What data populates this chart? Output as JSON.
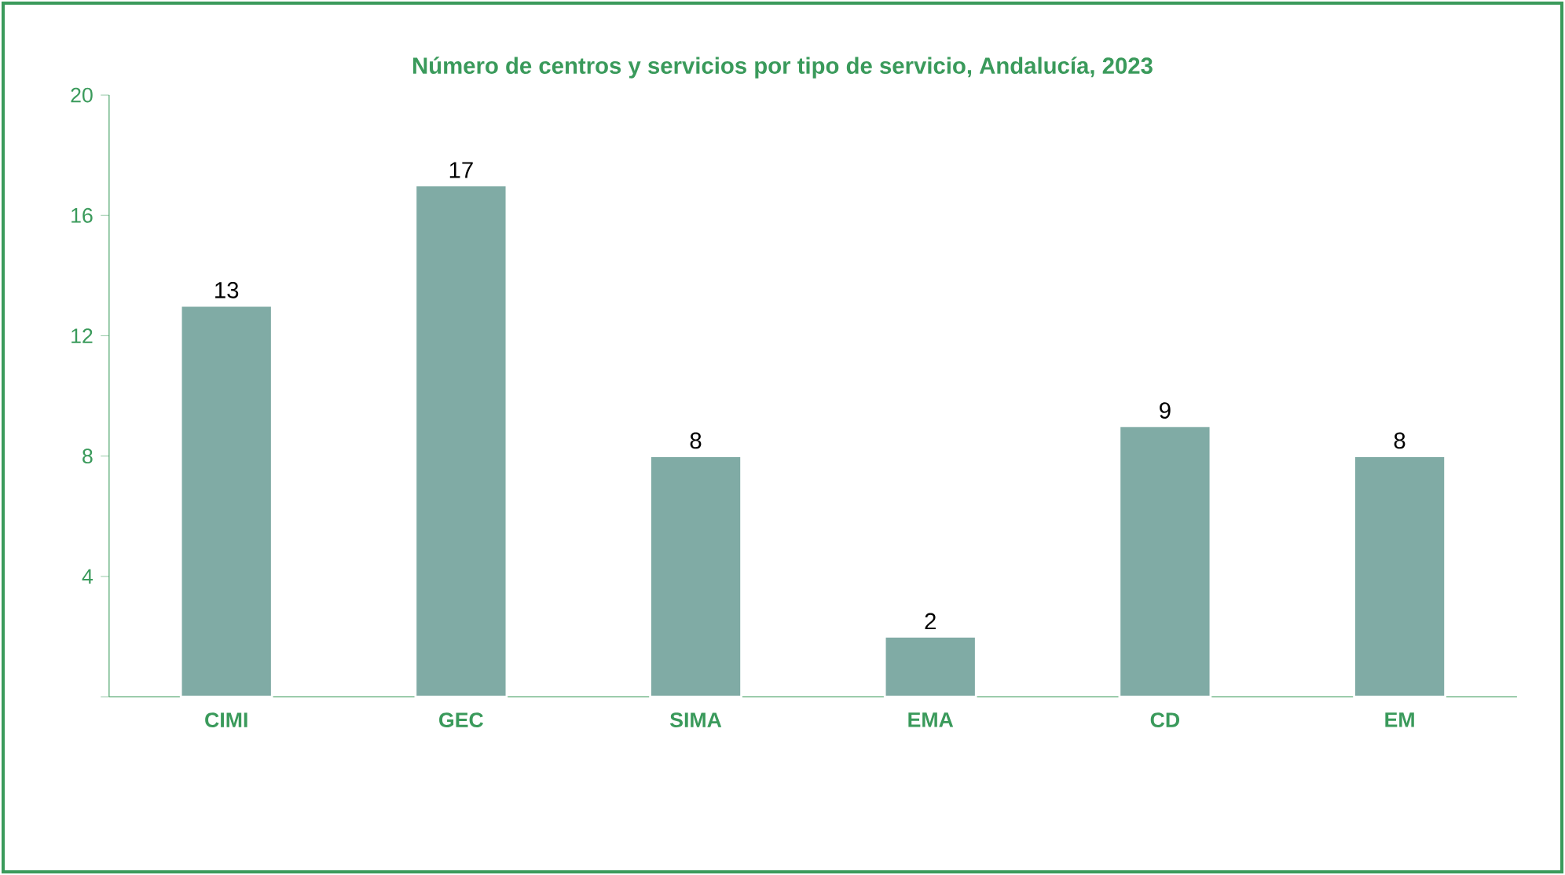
{
  "chart_data": {
    "type": "bar",
    "title": "Número de centros y servicios por tipo de servicio, Andalucía, 2023",
    "categories": [
      "CIMI",
      "GEC",
      "SIMA",
      "EMA",
      "CD",
      "EM"
    ],
    "values": [
      13,
      17,
      8,
      2,
      9,
      8
    ],
    "color": "#80aba5",
    "ylim": [
      0,
      20
    ],
    "yticks": [
      {
        "value": 0,
        "label": null
      },
      4,
      8,
      12,
      16,
      20
    ],
    "data_labels": true,
    "grid": false
  }
}
